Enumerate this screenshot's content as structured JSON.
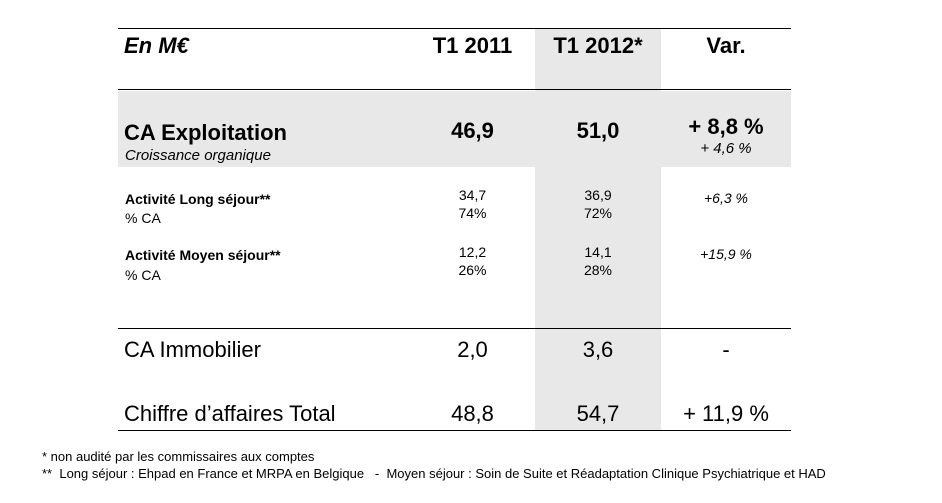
{
  "table": {
    "header": {
      "label": "En M€",
      "col1": "T1 2011",
      "col2": "T1 2012*",
      "col3": "Var."
    },
    "ca_exploitation": {
      "label": "CA Exploitation",
      "sublabel": "Croissance organique",
      "v2011": "46,9",
      "v2012": "51,0",
      "var": "+ 8,8 %",
      "var_organic": "+ 4,6 %"
    },
    "long_sejour": {
      "label": "Activité Long séjour**",
      "sublabel": "% CA",
      "v2011": "34,7",
      "pct2011": "74%",
      "v2012": "36,9",
      "pct2012": "72%",
      "var": "+6,3 %"
    },
    "moyen_sejour": {
      "label": "Activité Moyen séjour**",
      "sublabel": "% CA",
      "v2011": "12,2",
      "pct2011": "26%",
      "v2012": "14,1",
      "pct2012": "28%",
      "var": "+15,9 %"
    },
    "ca_immobilier": {
      "label": "CA Immobilier",
      "v2011": "2,0",
      "v2012": "3,6",
      "var": "-"
    },
    "total": {
      "label": "Chiffre d’affaires Total",
      "v2011": "48,8",
      "v2012": "54,7",
      "var": "+ 11,9 %"
    }
  },
  "footnotes": {
    "note1": "* non audité par les commissaires aux comptes",
    "note2": "**  Long séjour : Ehpad en France et MRPA en Belgique   -  Moyen séjour : Soin de Suite et Réadaptation Clinique Psychiatrique et HAD"
  },
  "colors": {
    "shading": "#e8e8e8",
    "rules": "#000000"
  }
}
